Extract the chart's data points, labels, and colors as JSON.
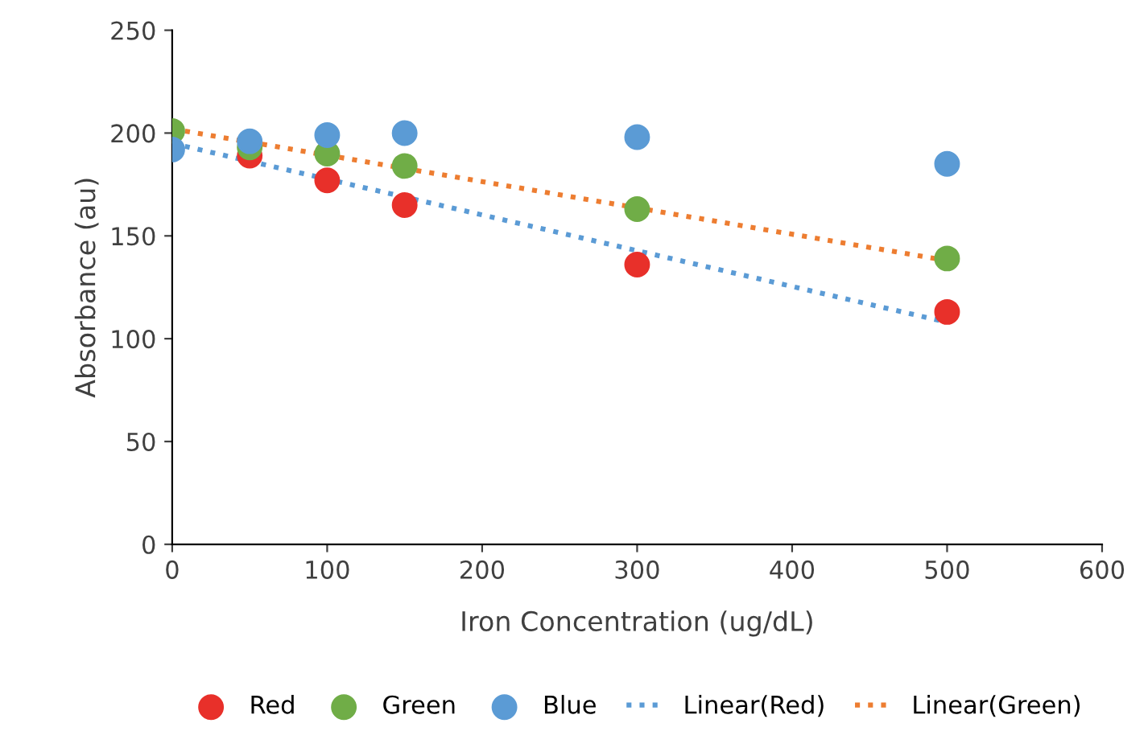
{
  "chart_data": {
    "type": "scatter",
    "xlabel": "Iron Concentration (ug/dL)",
    "ylabel": "Absorbance (au)",
    "xlim": [
      0,
      600
    ],
    "xticks": [
      0,
      100,
      200,
      300,
      400,
      500,
      600
    ],
    "ylim": [
      0,
      250
    ],
    "yticks": [
      0,
      50,
      100,
      150,
      200,
      250
    ],
    "grid": false,
    "legend": "bottom",
    "series": [
      {
        "name": "Red",
        "color": "#e8302a",
        "marker": "circle",
        "x": [
          50,
          100,
          150,
          300,
          500
        ],
        "values": [
          189,
          177,
          165,
          136,
          113
        ]
      },
      {
        "name": "Green",
        "color": "#70ad47",
        "marker": "circle",
        "x": [
          0,
          50,
          100,
          150,
          300,
          500
        ],
        "values": [
          201,
          193,
          190,
          184,
          163,
          139
        ]
      },
      {
        "name": "Blue",
        "color": "#5b9bd5",
        "marker": "circle",
        "x": [
          0,
          50,
          100,
          150,
          300,
          500
        ],
        "values": [
          192,
          196,
          199,
          200,
          198,
          185
        ]
      },
      {
        "name": "Linear(Red)",
        "type": "line",
        "line_style": "dotted",
        "marker": "none",
        "color": "#5b9bd5",
        "x": [
          0,
          500
        ],
        "values": [
          195,
          108
        ]
      },
      {
        "name": "Linear(Green)",
        "type": "line",
        "line_style": "dotted",
        "marker": "none",
        "color": "#ed7d31",
        "x": [
          0,
          500
        ],
        "values": [
          202,
          138
        ]
      }
    ]
  }
}
